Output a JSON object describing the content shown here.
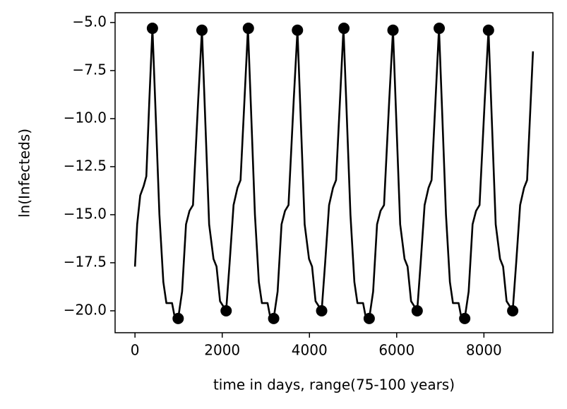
{
  "chart_data": {
    "type": "line",
    "xlabel": "time in days, range(75-100 years)",
    "ylabel": "ln(Infecteds)",
    "xlim": [
      -456,
      9581
    ],
    "ylim": [
      -21.14,
      -4.49
    ],
    "xticks": [
      0,
      2000,
      4000,
      6000,
      8000
    ],
    "yticks": [
      {
        "value": -5,
        "label": "−5.0"
      },
      {
        "value": -7.5,
        "label": "−7.5"
      },
      {
        "value": -10,
        "label": "−10.0"
      },
      {
        "value": -12.5,
        "label": "−12.5"
      },
      {
        "value": -15,
        "label": "−15.0"
      },
      {
        "value": -17.5,
        "label": "−17.5"
      },
      {
        "value": -20,
        "label": "−20.0"
      }
    ],
    "series": [
      {
        "color": "#000000",
        "style": "line",
        "x": [
          0,
          50,
          120,
          200,
          260,
          330,
          400,
          470,
          560,
          650,
          720,
          850,
          900,
          990,
          1080,
          1170,
          1250,
          1330,
          1450,
          1535,
          1610,
          1700,
          1800,
          1870,
          1950,
          2090,
          2170,
          2260,
          2350,
          2420,
          2500,
          2590,
          2660,
          2750,
          2840,
          2910,
          3040,
          3090,
          3180,
          3270,
          3360,
          3440,
          3520,
          3640,
          3725,
          3800,
          3890,
          3990,
          4060,
          4140,
          4280,
          4360,
          4450,
          4540,
          4610,
          4690,
          4780,
          4850,
          4940,
          5030,
          5100,
          5230,
          5280,
          5370,
          5460,
          5550,
          5630,
          5710,
          5830,
          5915,
          5990,
          6080,
          6180,
          6250,
          6330,
          6470,
          6550,
          6640,
          6730,
          6800,
          6880,
          6970,
          7040,
          7130,
          7220,
          7290,
          7420,
          7470,
          7560,
          7650,
          7740,
          7820,
          7900,
          8020,
          8105,
          8180,
          8270,
          8370,
          8440,
          8520,
          8660,
          8740,
          8830,
          8920,
          8990,
          9125
        ],
        "values": [
          -17.7,
          -15.5,
          -14.0,
          -13.5,
          -13.0,
          -9.0,
          -5.3,
          -9.5,
          -15.0,
          -18.5,
          -19.6,
          -19.6,
          -20.2,
          -20.4,
          -19.0,
          -15.5,
          -14.8,
          -14.5,
          -9.0,
          -5.4,
          -10.0,
          -15.5,
          -17.3,
          -17.7,
          -19.5,
          -20.0,
          -17.5,
          -14.5,
          -13.6,
          -13.2,
          -9.5,
          -5.3,
          -9.5,
          -15.0,
          -18.5,
          -19.6,
          -19.6,
          -20.2,
          -20.4,
          -19.0,
          -15.5,
          -14.8,
          -14.5,
          -9.0,
          -5.4,
          -10.0,
          -15.5,
          -17.3,
          -17.7,
          -19.5,
          -20.0,
          -17.5,
          -14.5,
          -13.6,
          -13.2,
          -9.5,
          -5.3,
          -9.5,
          -15.0,
          -18.5,
          -19.6,
          -19.6,
          -20.2,
          -20.4,
          -19.0,
          -15.5,
          -14.8,
          -14.5,
          -9.0,
          -5.4,
          -10.0,
          -15.5,
          -17.3,
          -17.7,
          -19.5,
          -20.0,
          -17.5,
          -14.5,
          -13.6,
          -13.2,
          -9.5,
          -5.3,
          -9.5,
          -15.0,
          -18.5,
          -19.6,
          -19.6,
          -20.2,
          -20.4,
          -19.0,
          -15.5,
          -14.8,
          -14.5,
          -9.0,
          -5.4,
          -10.0,
          -15.5,
          -17.3,
          -17.7,
          -19.5,
          -20.0,
          -17.5,
          -14.5,
          -13.6,
          -13.2,
          -6.5
        ]
      },
      {
        "color": "#000000",
        "style": "markers",
        "x": [
          400,
          1535,
          2600,
          3725,
          4790,
          5915,
          6975,
          8105,
          990,
          2090,
          3180,
          4280,
          5370,
          6470,
          7560,
          8660
        ],
        "values": [
          -5.3,
          -5.4,
          -5.3,
          -5.4,
          -5.3,
          -5.4,
          -5.3,
          -5.4,
          -20.4,
          -20.0,
          -20.4,
          -20.0,
          -20.4,
          -20.0,
          -20.4,
          -20.0
        ]
      }
    ]
  }
}
